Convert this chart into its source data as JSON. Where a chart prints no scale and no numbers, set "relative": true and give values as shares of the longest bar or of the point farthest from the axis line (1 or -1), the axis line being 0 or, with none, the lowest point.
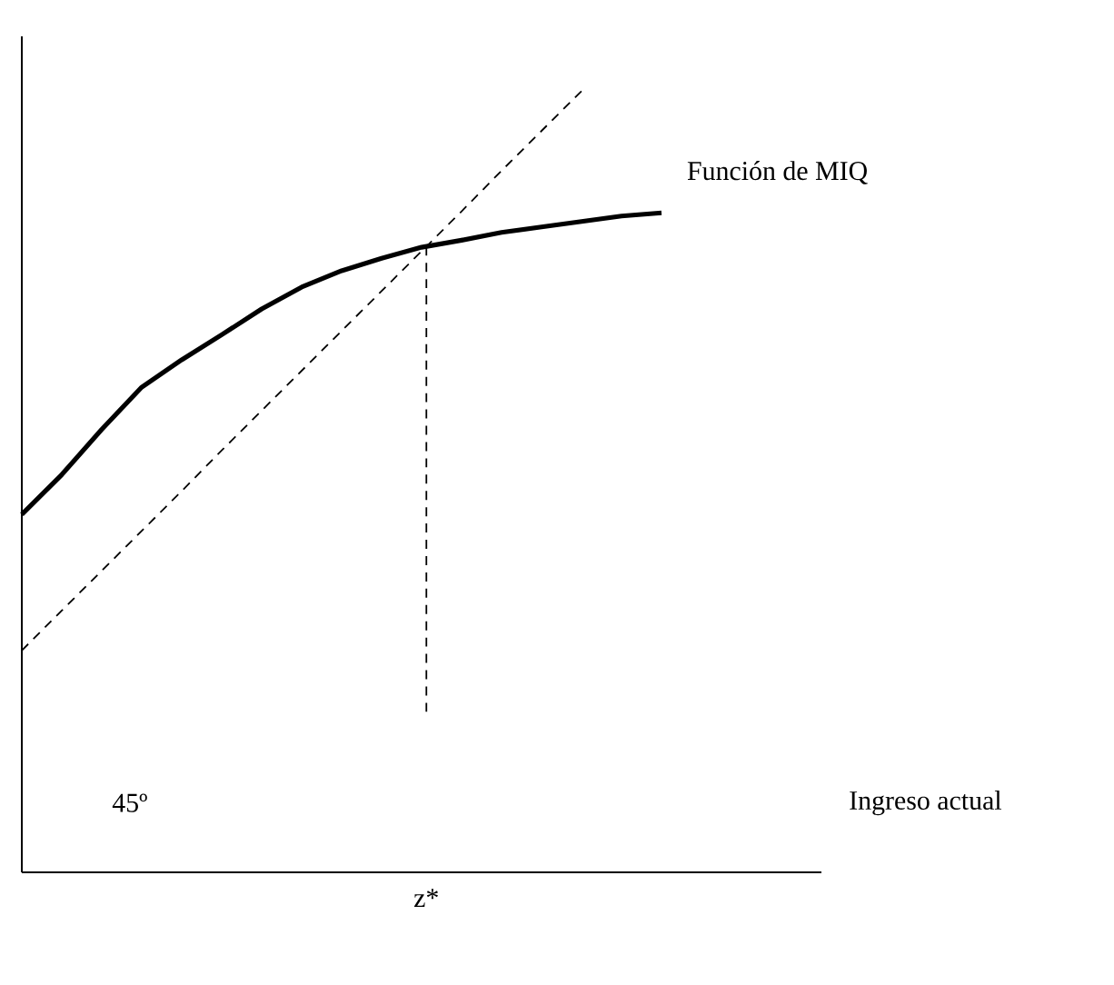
{
  "chart_data": {
    "type": "line",
    "relative": true,
    "xlabel": "Ingreso actual",
    "annotations": [
      "45º"
    ],
    "categories": [
      null,
      null,
      null,
      null,
      null,
      null,
      null,
      null,
      null,
      null,
      null,
      null,
      null,
      null,
      null,
      null,
      null,
      null,
      null,
      null,
      null
    ],
    "ref_lines": [
      {
        "axis": "x",
        "label": "z*",
        "line_style": "dashed",
        "color": "#000000"
      }
    ],
    "series": [
      {
        "name": "Función de MIQ",
        "color": "#000000",
        "line_style": "solid",
        "values": [
          0.458,
          0.509,
          0.567,
          0.621,
          0.656,
          0.688,
          0.721,
          0.749,
          0.77,
          0.786,
          0.8,
          0.809,
          0.819,
          0.826,
          0.833,
          0.84,
          0.844,
          null,
          null,
          null,
          null
        ]
      },
      {
        "color": "#000000",
        "line_style": "dashed",
        "values": [
          0.284,
          0.335,
          0.386,
          0.437,
          0.488,
          0.54,
          0.591,
          0.642,
          0.693,
          0.744,
          0.795,
          0.846,
          0.898,
          0.949,
          1.0,
          null,
          null,
          null,
          null,
          null,
          null
        ]
      }
    ]
  }
}
